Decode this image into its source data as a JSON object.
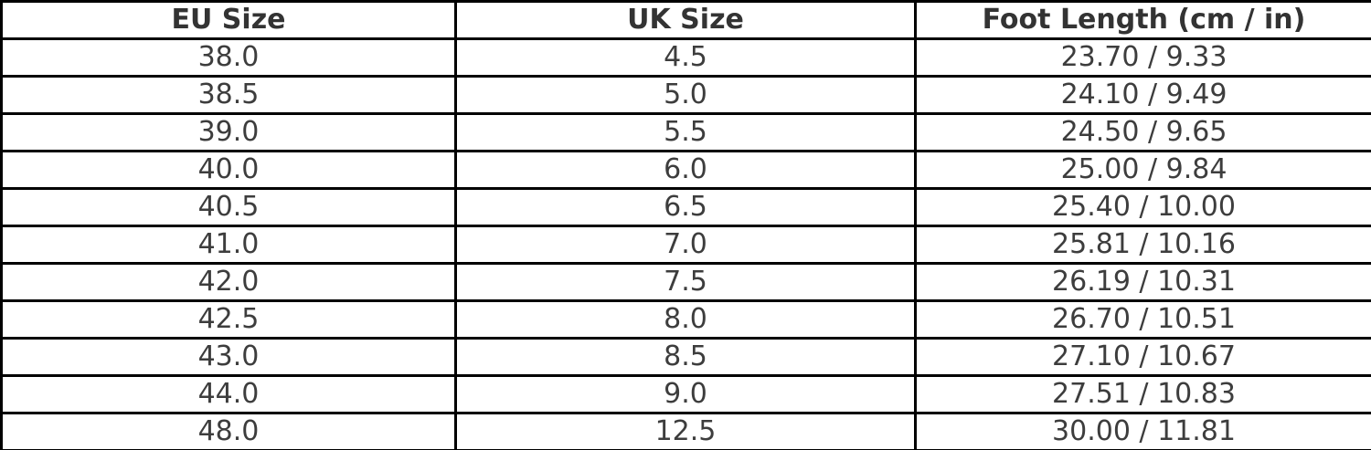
{
  "chart_data": {
    "type": "table",
    "title": "",
    "columns": [
      "EU Size",
      "UK Size",
      "Foot Length (cm / in)"
    ],
    "rows": [
      [
        "38.0",
        "4.5",
        "23.70 / 9.33"
      ],
      [
        "38.5",
        "5.0",
        "24.10 / 9.49"
      ],
      [
        "39.0",
        "5.5",
        "24.50 / 9.65"
      ],
      [
        "40.0",
        "6.0",
        "25.00 / 9.84"
      ],
      [
        "40.5",
        "6.5",
        "25.40 / 10.00"
      ],
      [
        "41.0",
        "7.0",
        "25.81 / 10.16"
      ],
      [
        "42.0",
        "7.5",
        "26.19 / 10.31"
      ],
      [
        "42.5",
        "8.0",
        "26.70 / 10.51"
      ],
      [
        "43.0",
        "8.5",
        "27.10 / 10.67"
      ],
      [
        "44.0",
        "9.0",
        "27.51 / 10.83"
      ],
      [
        "48.0",
        "12.5",
        "30.00 / 11.81"
      ]
    ],
    "layout": {
      "grid": true,
      "header_bold": true
    },
    "colors": {
      "border": "#000000",
      "header_text": "#333333",
      "cell_text": "#3d3d3d",
      "background": "#ffffff"
    }
  }
}
